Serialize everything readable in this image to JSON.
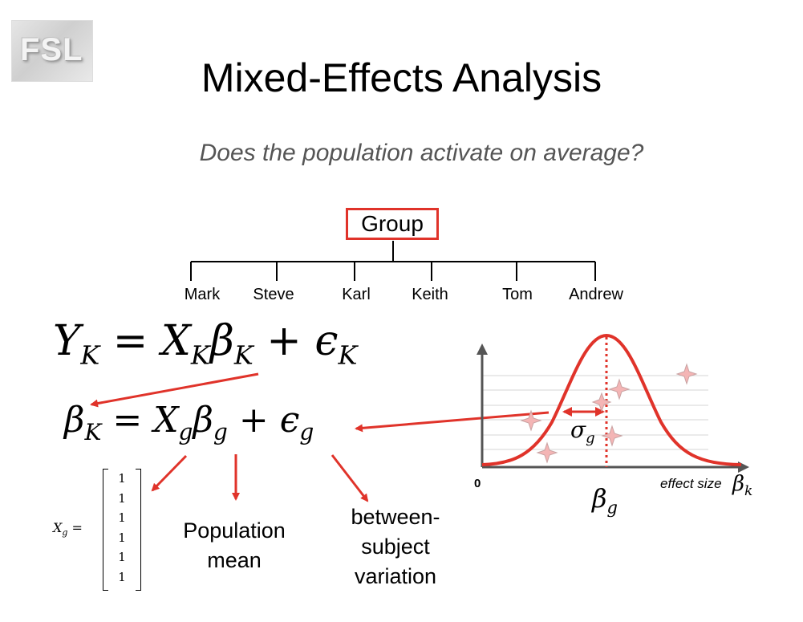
{
  "logo": {
    "text": "FSL"
  },
  "title": "Mixed-Effects Analysis",
  "subtitle": "Does the population activate on average?",
  "hierarchy": {
    "root": "Group",
    "subjects": [
      "Mark",
      "Steve",
      "Karl",
      "Keith",
      "Tom",
      "Andrew"
    ]
  },
  "equations": {
    "first_level": "Y_K = X_K β_K + ε_K",
    "second_level": "β_K = X_g β_g + ε_g"
  },
  "design_matrix": {
    "label": "X_g =",
    "values": [
      "1",
      "1",
      "1",
      "1",
      "1",
      "1"
    ]
  },
  "captions": {
    "population_mean": "Population mean",
    "between_subject": "between-subject variation"
  },
  "plot": {
    "origin_label": "0",
    "x_label": "effect size",
    "x_symbol": "β_k",
    "mean_symbol": "β_g",
    "spread_symbol": "σ_g"
  },
  "colors": {
    "accent": "#e0332a",
    "subtitle": "#555555",
    "star": "#f4b5b5"
  }
}
